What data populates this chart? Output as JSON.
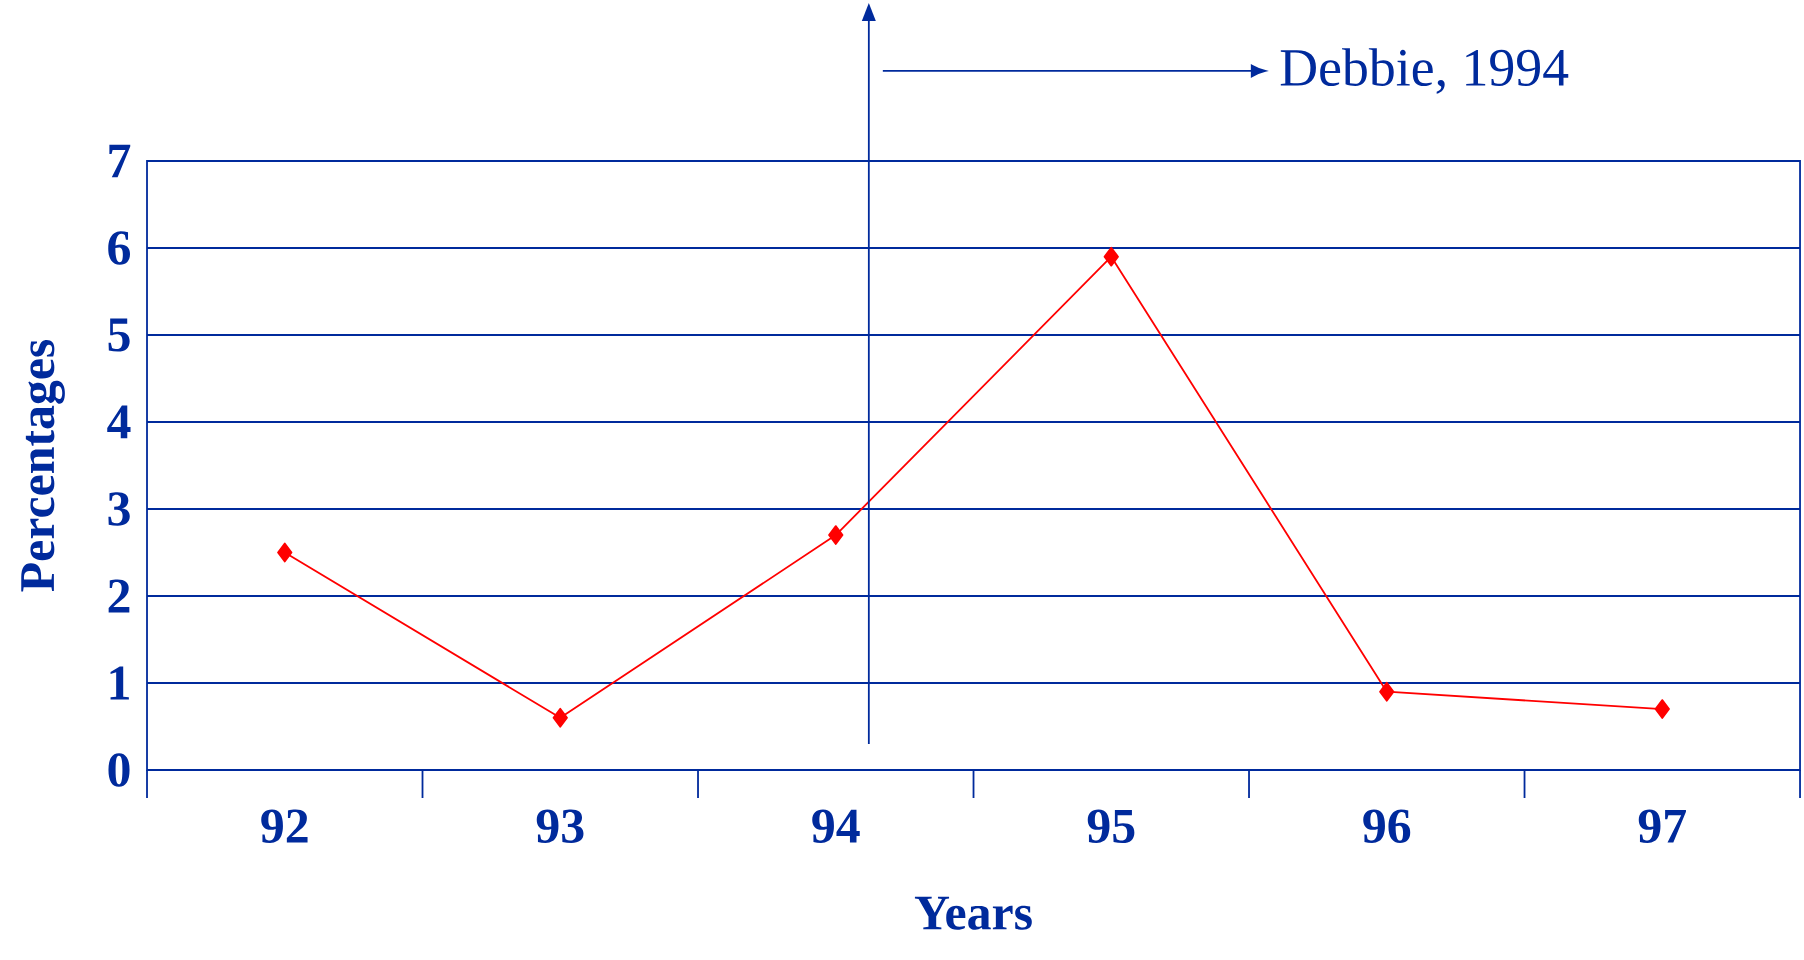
{
  "chart_data": {
    "type": "line",
    "xlabel": "Years",
    "ylabel": "Percentages",
    "categories": [
      "92",
      "93",
      "94",
      "95",
      "96",
      "97"
    ],
    "series": [
      {
        "color": "#ff0000",
        "values": [
          2.5,
          0.6,
          2.7,
          5.9,
          0.9,
          0.7
        ]
      }
    ],
    "ylim": [
      0,
      7
    ],
    "yticks": [
      0,
      1,
      2,
      3,
      4,
      5,
      6,
      7
    ],
    "grid": "y",
    "marker": "diamond",
    "line_style": "solid",
    "ref_lines": [
      {
        "axis": "x",
        "value": "94",
        "label": "Debbie, 1994",
        "color": "#002a9c"
      }
    ]
  }
}
